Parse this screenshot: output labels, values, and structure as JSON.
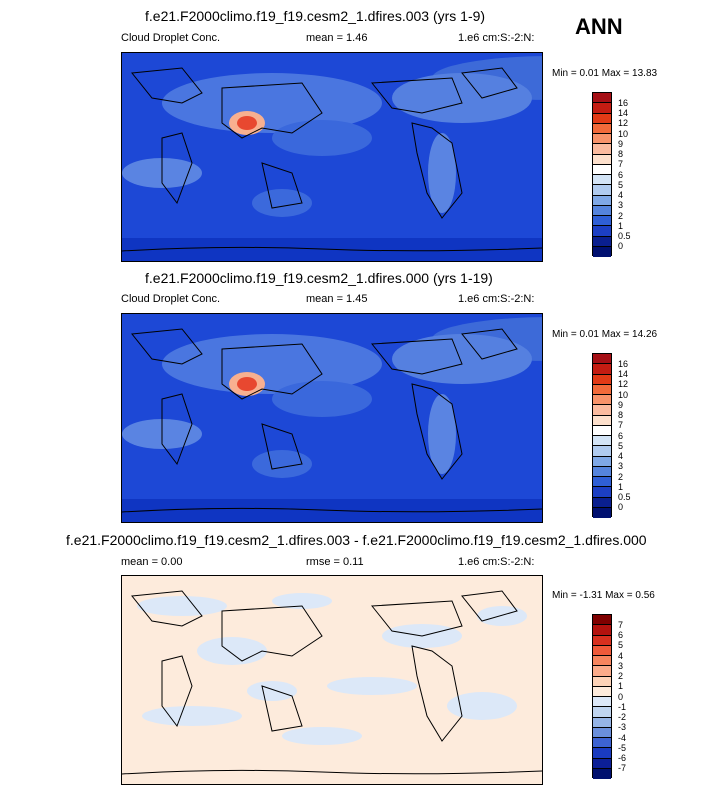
{
  "season": "ANN",
  "panels": [
    {
      "title": "f.e21.F2000climo.f19_f19.cesm2_1.dfires.003 (yrs 1-9)",
      "left_label": "Cloud Droplet Conc.",
      "center_label": "mean =   1.46",
      "right_label": "1.e6 cm:S:-2:N:",
      "min_max": "Min =   0.01 Max =  13.83",
      "levels": [
        "16",
        "14",
        "12",
        "10",
        "9",
        "8",
        "7",
        "6",
        "5",
        "4",
        "3",
        "2",
        "1",
        "0.5",
        "0"
      ],
      "colors": [
        "#a50f15",
        "#c41c12",
        "#e23a16",
        "#f26a3a",
        "#f8936a",
        "#fbbb9f",
        "#fde0cc",
        "#ffffff",
        "#d3e4f6",
        "#b0cbef",
        "#7fa8e6",
        "#5584dd",
        "#2f5fd6",
        "#1c3fc4",
        "#0a1f8f",
        "#001070"
      ],
      "map_colors": {
        "ocean": "#1d48d6",
        "land": "#4a76e0",
        "hot": "#e84830",
        "warm": "#f8b090"
      }
    },
    {
      "title": "f.e21.F2000climo.f19_f19.cesm2_1.dfires.000 (yrs 1-19)",
      "left_label": "Cloud Droplet Conc.",
      "center_label": "mean =   1.45",
      "right_label": "1.e6 cm:S:-2:N:",
      "min_max": "Min =   0.01 Max =  14.26",
      "levels": [
        "16",
        "14",
        "12",
        "10",
        "9",
        "8",
        "7",
        "6",
        "5",
        "4",
        "3",
        "2",
        "1",
        "0.5",
        "0"
      ],
      "colors": [
        "#a50f15",
        "#c41c12",
        "#e23a16",
        "#f26a3a",
        "#f8936a",
        "#fbbb9f",
        "#fde0cc",
        "#ffffff",
        "#d3e4f6",
        "#b0cbef",
        "#7fa8e6",
        "#5584dd",
        "#2f5fd6",
        "#1c3fc4",
        "#0a1f8f",
        "#001070"
      ],
      "map_colors": {
        "ocean": "#1d48d6",
        "land": "#4a76e0",
        "hot": "#e84830",
        "warm": "#f8b090"
      }
    },
    {
      "title": "f.e21.F2000climo.f19_f19.cesm2_1.dfires.003 - f.e21.F2000climo.f19_f19.cesm2_1.dfires.000",
      "left_label": "mean =   0.00",
      "center_label": "rmse =   0.11",
      "right_label": "1.e6 cm:S:-2:N:",
      "min_max": "Min =  -1.31 Max =   0.56",
      "levels": [
        "7",
        "6",
        "5",
        "4",
        "3",
        "2",
        "1",
        "0",
        "-1",
        "-2",
        "-3",
        "-4",
        "-5",
        "-6",
        "-7"
      ],
      "colors": [
        "#7f0000",
        "#b3120e",
        "#d7301f",
        "#ef5a3a",
        "#f7855e",
        "#fbab8a",
        "#fdd3b8",
        "#fdebdc",
        "#dce8f8",
        "#c0d5f0",
        "#95b4e6",
        "#6a8fdc",
        "#3d63d2",
        "#1a3bc0",
        "#0c1f96",
        "#00106e"
      ],
      "map_colors": {
        "base": "#fdebdc",
        "cool": "#dce8f8"
      }
    }
  ]
}
